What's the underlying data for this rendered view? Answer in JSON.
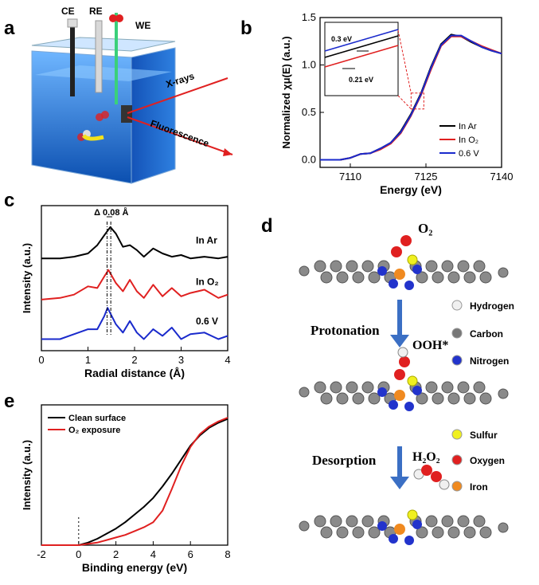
{
  "panels": {
    "a": "a",
    "b": "b",
    "c": "c",
    "d": "d",
    "e": "e"
  },
  "panel_a": {
    "electrodes": [
      "CE",
      "RE",
      "WE"
    ],
    "beam_in": "X-rays",
    "beam_out": "Fluorescence",
    "colors": {
      "water": "#1e6fd0",
      "beam": "#e02020",
      "probe": "#3ad07a"
    }
  },
  "panel_d": {
    "labels": {
      "o2": "O₂",
      "ooh": "OOH*",
      "h2o2": "H₂O₂",
      "step1": "Protonation",
      "step2": "Desorption"
    },
    "legend": [
      {
        "name": "Hydrogen",
        "color": "#f0f0f0"
      },
      {
        "name": "Carbon",
        "color": "#777777"
      },
      {
        "name": "Nitrogen",
        "color": "#2233cc"
      },
      {
        "name": "Sulfur",
        "color": "#f0f020"
      },
      {
        "name": "Oxygen",
        "color": "#e02020"
      },
      {
        "name": "Iron",
        "color": "#f08a20"
      }
    ]
  },
  "chart_data": [
    {
      "id": "b",
      "type": "line",
      "xlabel": "Energy (eV)",
      "ylabel": "Normalized χμ(E) (a.u.)",
      "xlim": [
        7104,
        7140
      ],
      "ylim": [
        -0.08,
        1.5
      ],
      "xticks": [
        7110,
        7125,
        7140
      ],
      "yticks": [
        0.0,
        0.5,
        1.0,
        1.5
      ],
      "legend_position": "bottom-right",
      "series": [
        {
          "name": "In Ar",
          "color": "#000000",
          "x": [
            7104,
            7108,
            7110,
            7112,
            7114,
            7116,
            7118,
            7120,
            7122,
            7124,
            7126,
            7128,
            7130,
            7132,
            7134,
            7136,
            7138,
            7140
          ],
          "y": [
            0.0,
            0.0,
            0.02,
            0.06,
            0.07,
            0.12,
            0.18,
            0.3,
            0.48,
            0.7,
            0.98,
            1.22,
            1.32,
            1.3,
            1.24,
            1.19,
            1.15,
            1.12
          ]
        },
        {
          "name": "In O2",
          "color": "#e02020",
          "x": [
            7104,
            7108,
            7110,
            7112,
            7114,
            7116,
            7118,
            7120,
            7122,
            7124,
            7126,
            7128,
            7130,
            7132,
            7134,
            7136,
            7138,
            7140
          ],
          "y": [
            0.0,
            0.0,
            0.02,
            0.06,
            0.07,
            0.11,
            0.17,
            0.28,
            0.46,
            0.68,
            0.95,
            1.2,
            1.3,
            1.3,
            1.25,
            1.2,
            1.16,
            1.12
          ]
        },
        {
          "name": "0.6 V",
          "color": "#1a2acc",
          "x": [
            7104,
            7108,
            7110,
            7112,
            7114,
            7116,
            7118,
            7120,
            7122,
            7124,
            7126,
            7128,
            7130,
            7132,
            7134,
            7136,
            7138,
            7140
          ],
          "y": [
            0.0,
            0.0,
            0.02,
            0.06,
            0.07,
            0.12,
            0.18,
            0.29,
            0.47,
            0.69,
            0.97,
            1.21,
            1.31,
            1.31,
            1.25,
            1.19,
            1.15,
            1.12
          ]
        }
      ],
      "inset_annotations": [
        "0.3 eV",
        "0.21 eV"
      ]
    },
    {
      "id": "c",
      "type": "line",
      "xlabel": "Radial distance (Å)",
      "ylabel": "Intensity (a.u.)",
      "xlim": [
        0,
        4
      ],
      "ylim": [
        0,
        4.4
      ],
      "xticks": [
        0,
        1,
        2,
        3,
        4
      ],
      "annotation": "Δ 0.08 Å",
      "series": [
        {
          "name": "In Ar",
          "color": "#000000",
          "offset": 2.8,
          "x": [
            0,
            0.4,
            0.7,
            1.0,
            1.2,
            1.35,
            1.48,
            1.6,
            1.75,
            1.9,
            2.05,
            2.2,
            2.4,
            2.6,
            2.8,
            3.0,
            3.2,
            3.5,
            3.8,
            4.0
          ],
          "y": [
            0.0,
            0.0,
            0.05,
            0.15,
            0.4,
            0.7,
            0.95,
            0.75,
            0.35,
            0.4,
            0.25,
            0.05,
            0.3,
            0.15,
            0.05,
            0.1,
            0.0,
            0.05,
            0.0,
            0.05
          ]
        },
        {
          "name": "In O2",
          "color": "#e02020",
          "offset": 1.55,
          "x": [
            0,
            0.4,
            0.7,
            1.0,
            1.2,
            1.35,
            1.44,
            1.6,
            1.75,
            1.9,
            2.05,
            2.2,
            2.4,
            2.6,
            2.8,
            3.0,
            3.2,
            3.5,
            3.8,
            4.0
          ],
          "y": [
            0.0,
            0.05,
            0.15,
            0.4,
            0.35,
            0.7,
            0.9,
            0.5,
            0.25,
            0.6,
            0.25,
            0.05,
            0.45,
            0.1,
            0.35,
            0.1,
            0.2,
            0.3,
            0.05,
            0.15
          ]
        },
        {
          "name": "0.6 V",
          "color": "#1a2acc",
          "offset": 0.35,
          "x": [
            0,
            0.4,
            0.7,
            1.0,
            1.2,
            1.35,
            1.42,
            1.6,
            1.75,
            1.9,
            2.05,
            2.2,
            2.4,
            2.6,
            2.8,
            3.0,
            3.2,
            3.5,
            3.8,
            4.0
          ],
          "y": [
            0.0,
            0.0,
            0.15,
            0.3,
            0.3,
            0.7,
            0.95,
            0.45,
            0.2,
            0.55,
            0.2,
            0.0,
            0.3,
            0.1,
            0.35,
            0.0,
            0.15,
            0.2,
            0.0,
            0.1
          ]
        }
      ]
    },
    {
      "id": "e",
      "type": "line",
      "xlabel": "Binding energy (eV)",
      "ylabel": "Intensity (a.u.)",
      "xlim": [
        -2,
        8
      ],
      "ylim": [
        0,
        1.1
      ],
      "xticks": [
        -2,
        0,
        2,
        4,
        6,
        8
      ],
      "legend_position": "top-left",
      "series": [
        {
          "name": "Clean surface",
          "color": "#000000",
          "x": [
            -2,
            -1,
            0,
            0.5,
            1,
            1.5,
            2,
            2.5,
            3,
            3.5,
            4,
            4.5,
            5,
            5.5,
            6,
            6.5,
            7,
            7.5,
            8
          ],
          "y": [
            0.0,
            0.0,
            0.0,
            0.02,
            0.05,
            0.09,
            0.13,
            0.18,
            0.24,
            0.3,
            0.37,
            0.46,
            0.56,
            0.67,
            0.78,
            0.86,
            0.92,
            0.96,
            0.99
          ]
        },
        {
          "name": "O2 exposure",
          "color": "#e02020",
          "x": [
            -2,
            -1,
            0,
            0.5,
            1,
            1.5,
            2,
            2.5,
            3,
            3.5,
            4,
            4.5,
            5,
            5.5,
            6,
            6.5,
            7,
            7.5,
            8
          ],
          "y": [
            0.0,
            0.0,
            0.0,
            0.01,
            0.02,
            0.04,
            0.06,
            0.08,
            0.11,
            0.14,
            0.18,
            0.27,
            0.44,
            0.62,
            0.77,
            0.87,
            0.93,
            0.97,
            1.0
          ]
        }
      ]
    }
  ]
}
